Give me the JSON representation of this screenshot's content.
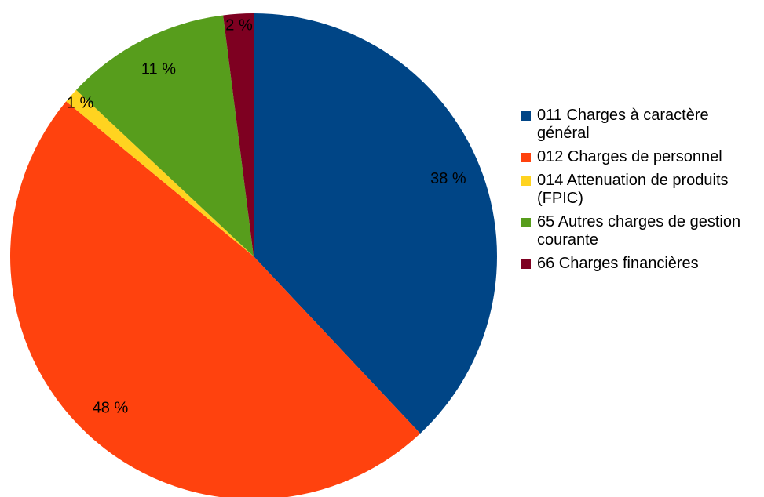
{
  "chart_data": {
    "type": "pie",
    "categories": [
      "011 Charges à caractère général",
      "012 Charges de personnel",
      "014 Attenuation de produits (FPIC)",
      "65 Autres charges de gestion courante",
      "66 Charges financières"
    ],
    "values": [
      38,
      48,
      1,
      11,
      2
    ],
    "value_labels": [
      "38 %",
      "48 %",
      "1 %",
      "11 %",
      "2 %"
    ],
    "colors": [
      "#004586",
      "#ff420e",
      "#ffd320",
      "#579d1c",
      "#7e0021"
    ],
    "legend": "right"
  }
}
